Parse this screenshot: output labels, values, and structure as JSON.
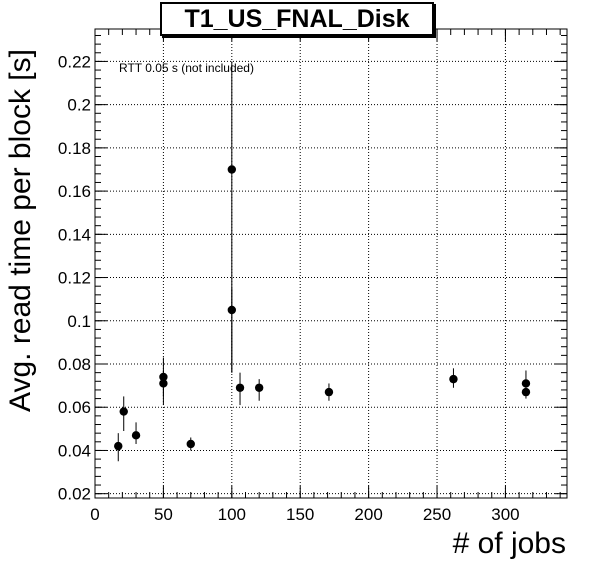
{
  "chart_data": {
    "type": "scatter",
    "title": "T1_US_FNAL_Disk",
    "xlabel": "# of jobs",
    "ylabel": "Avg. read time per block [s]",
    "annotation": "RTT 0.05 s (not included)",
    "xlim": [
      0,
      345
    ],
    "ylim": [
      0.018,
      0.235
    ],
    "x_ticks": [
      0,
      50,
      100,
      150,
      200,
      250,
      300
    ],
    "x_tick_labels": [
      "0",
      "50",
      "100",
      "150",
      "200",
      "250",
      "300"
    ],
    "y_ticks": [
      0.02,
      0.04,
      0.06,
      0.08,
      0.1,
      0.12,
      0.14,
      0.16,
      0.18,
      0.2,
      0.22
    ],
    "y_tick_labels": [
      "0.02",
      "0.04",
      "0.06",
      "0.08",
      "0.1",
      "0.12",
      "0.14",
      "0.16",
      "0.18",
      "0.2",
      "0.22"
    ],
    "grid": true,
    "points": [
      {
        "x": 17,
        "y": 0.042,
        "err_lo": 0.007,
        "err_hi": 0.006
      },
      {
        "x": 21,
        "y": 0.058,
        "err_lo": 0.009,
        "err_hi": 0.007
      },
      {
        "x": 30,
        "y": 0.047,
        "err_lo": 0.004,
        "err_hi": 0.006
      },
      {
        "x": 50,
        "y": 0.074,
        "err_lo": 0.009,
        "err_hi": 0.009
      },
      {
        "x": 50,
        "y": 0.071,
        "err_lo": 0.01,
        "err_hi": 0.006
      },
      {
        "x": 70,
        "y": 0.043,
        "err_lo": 0.003,
        "err_hi": 0.003
      },
      {
        "x": 100,
        "y": 0.17,
        "err_lo": 0.094,
        "err_hi": 0.05
      },
      {
        "x": 100,
        "y": 0.105,
        "err_lo": 0.029,
        "err_hi": 0.01
      },
      {
        "x": 106,
        "y": 0.069,
        "err_lo": 0.008,
        "err_hi": 0.007
      },
      {
        "x": 120,
        "y": 0.069,
        "err_lo": 0.006,
        "err_hi": 0.004
      },
      {
        "x": 171,
        "y": 0.067,
        "err_lo": 0.004,
        "err_hi": 0.004
      },
      {
        "x": 262,
        "y": 0.073,
        "err_lo": 0.004,
        "err_hi": 0.005
      },
      {
        "x": 315,
        "y": 0.071,
        "err_lo": 0.004,
        "err_hi": 0.006
      },
      {
        "x": 315,
        "y": 0.067,
        "err_lo": 0.003,
        "err_hi": 0.003
      }
    ],
    "marker_color": "#000000"
  }
}
